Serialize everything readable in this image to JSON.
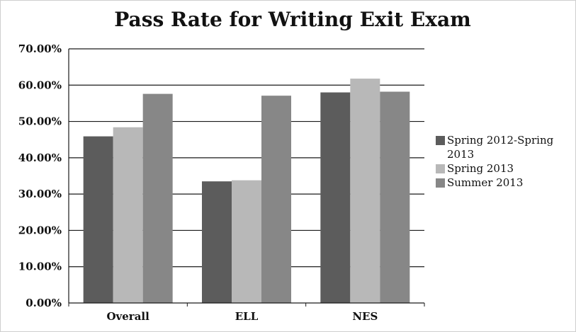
{
  "chart_data": {
    "type": "bar",
    "title": "Pass Rate for Writing Exit Exam",
    "xlabel": "",
    "ylabel": "",
    "categories": [
      "Overall",
      "ELL",
      "NES"
    ],
    "series": [
      {
        "name": "Spring 2012-Spring 2013",
        "values": [
          0.459,
          0.335,
          0.58
        ],
        "color": "#5c5c5c"
      },
      {
        "name": "Spring 2013",
        "values": [
          0.484,
          0.338,
          0.618
        ],
        "color": "#b8b8b8"
      },
      {
        "name": "Summer 2013",
        "values": [
          0.576,
          0.571,
          0.582
        ],
        "color": "#878787"
      }
    ],
    "ylim": [
      0,
      0.7
    ],
    "yticks": [
      0,
      0.1,
      0.2,
      0.3,
      0.4,
      0.5,
      0.6,
      0.7
    ],
    "ytick_labels": [
      "0.00%",
      "10.00%",
      "20.00%",
      "30.00%",
      "40.00%",
      "50.00%",
      "60.00%",
      "70.00%"
    ],
    "grid": true,
    "legend_position": "right"
  }
}
